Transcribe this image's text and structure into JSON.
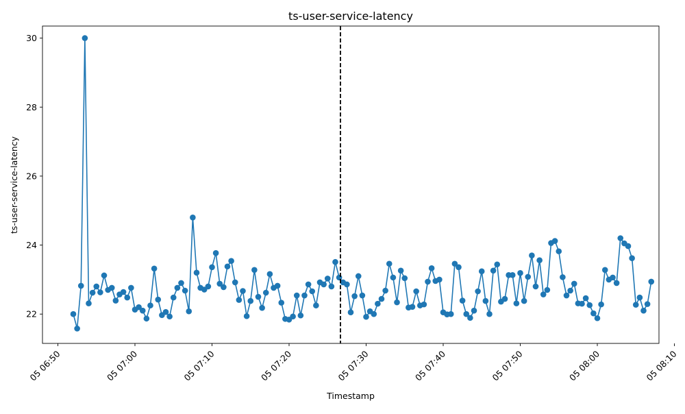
{
  "chart_data": {
    "type": "line",
    "title": "ts-user-service-latency",
    "xlabel": "Timestamp",
    "ylabel": "ts-user-service-latency",
    "x_axis_type": "datetime",
    "xlim": [
      "2021-05-05 06:48:00",
      "2021-05-05 08:08:00"
    ],
    "ylim": [
      21.15,
      30.35
    ],
    "x_ticks": [
      {
        "value": "2021-05-05 06:50:00",
        "label": "05 06:50"
      },
      {
        "value": "2021-05-05 07:00:00",
        "label": "05 07:00"
      },
      {
        "value": "2021-05-05 07:10:00",
        "label": "05 07:10"
      },
      {
        "value": "2021-05-05 07:20:00",
        "label": "05 07:20"
      },
      {
        "value": "2021-05-05 07:30:00",
        "label": "05 07:30"
      },
      {
        "value": "2021-05-05 07:40:00",
        "label": "05 07:40"
      },
      {
        "value": "2021-05-05 07:50:00",
        "label": "05 07:50"
      },
      {
        "value": "2021-05-05 08:00:00",
        "label": "05 08:00"
      },
      {
        "value": "2021-05-05 08:10:00",
        "label": "05 08:10"
      }
    ],
    "y_ticks": [
      22,
      24,
      26,
      28,
      30
    ],
    "grid": false,
    "marker": "circle",
    "color": "#1f77b4",
    "vline": {
      "x": "2021-05-05 07:26:40",
      "style": "dashed",
      "color": "#000000"
    },
    "series": [
      {
        "points": [
          [
            "2021-05-05 06:52:00",
            22.0
          ],
          [
            "2021-05-05 06:52:30",
            21.58
          ],
          [
            "2021-05-05 06:53:00",
            22.82
          ],
          [
            "2021-05-05 06:53:30",
            30.0
          ],
          [
            "2021-05-05 06:54:00",
            22.31
          ],
          [
            "2021-05-05 06:54:30",
            22.62
          ],
          [
            "2021-05-05 06:55:00",
            22.8
          ],
          [
            "2021-05-05 06:55:30",
            22.63
          ],
          [
            "2021-05-05 06:56:00",
            23.12
          ],
          [
            "2021-05-05 06:56:30",
            22.7
          ],
          [
            "2021-05-05 06:57:00",
            22.76
          ],
          [
            "2021-05-05 06:57:30",
            22.39
          ],
          [
            "2021-05-05 06:58:00",
            22.57
          ],
          [
            "2021-05-05 06:58:30",
            22.64
          ],
          [
            "2021-05-05 06:59:00",
            22.48
          ],
          [
            "2021-05-05 06:59:30",
            22.76
          ],
          [
            "2021-05-05 07:00:00",
            22.13
          ],
          [
            "2021-05-05 07:00:30",
            22.2
          ],
          [
            "2021-05-05 07:01:00",
            22.1
          ],
          [
            "2021-05-05 07:01:30",
            21.87
          ],
          [
            "2021-05-05 07:02:00",
            22.25
          ],
          [
            "2021-05-05 07:02:30",
            23.32
          ],
          [
            "2021-05-05 07:03:00",
            22.42
          ],
          [
            "2021-05-05 07:03:30",
            21.97
          ],
          [
            "2021-05-05 07:04:00",
            22.06
          ],
          [
            "2021-05-05 07:04:30",
            21.93
          ],
          [
            "2021-05-05 07:05:00",
            22.48
          ],
          [
            "2021-05-05 07:05:30",
            22.76
          ],
          [
            "2021-05-05 07:06:00",
            22.9
          ],
          [
            "2021-05-05 07:06:30",
            22.68
          ],
          [
            "2021-05-05 07:07:00",
            22.08
          ],
          [
            "2021-05-05 07:07:30",
            24.8
          ],
          [
            "2021-05-05 07:08:00",
            23.2
          ],
          [
            "2021-05-05 07:08:30",
            22.76
          ],
          [
            "2021-05-05 07:09:00",
            22.71
          ],
          [
            "2021-05-05 07:09:30",
            22.8
          ],
          [
            "2021-05-05 07:10:00",
            23.36
          ],
          [
            "2021-05-05 07:10:30",
            23.77
          ],
          [
            "2021-05-05 07:11:00",
            22.88
          ],
          [
            "2021-05-05 07:11:30",
            22.78
          ],
          [
            "2021-05-05 07:12:00",
            23.38
          ],
          [
            "2021-05-05 07:12:30",
            23.54
          ],
          [
            "2021-05-05 07:13:00",
            22.92
          ],
          [
            "2021-05-05 07:13:30",
            22.41
          ],
          [
            "2021-05-05 07:14:00",
            22.67
          ],
          [
            "2021-05-05 07:14:30",
            21.94
          ],
          [
            "2021-05-05 07:15:00",
            22.38
          ],
          [
            "2021-05-05 07:15:30",
            23.28
          ],
          [
            "2021-05-05 07:16:00",
            22.5
          ],
          [
            "2021-05-05 07:16:30",
            22.18
          ],
          [
            "2021-05-05 07:17:00",
            22.62
          ],
          [
            "2021-05-05 07:17:30",
            23.16
          ],
          [
            "2021-05-05 07:18:00",
            22.76
          ],
          [
            "2021-05-05 07:18:30",
            22.82
          ],
          [
            "2021-05-05 07:19:00",
            22.33
          ],
          [
            "2021-05-05 07:19:30",
            21.86
          ],
          [
            "2021-05-05 07:20:00",
            21.84
          ],
          [
            "2021-05-05 07:20:30",
            21.93
          ],
          [
            "2021-05-05 07:21:00",
            22.54
          ],
          [
            "2021-05-05 07:21:30",
            21.96
          ],
          [
            "2021-05-05 07:22:00",
            22.54
          ],
          [
            "2021-05-05 07:22:30",
            22.86
          ],
          [
            "2021-05-05 07:23:00",
            22.66
          ],
          [
            "2021-05-05 07:23:30",
            22.25
          ],
          [
            "2021-05-05 07:24:00",
            22.92
          ],
          [
            "2021-05-05 07:24:30",
            22.86
          ],
          [
            "2021-05-05 07:25:00",
            23.03
          ],
          [
            "2021-05-05 07:25:30",
            22.8
          ],
          [
            "2021-05-05 07:26:00",
            23.51
          ],
          [
            "2021-05-05 07:26:30",
            23.06
          ],
          [
            "2021-05-05 07:27:00",
            22.92
          ],
          [
            "2021-05-05 07:27:30",
            22.86
          ],
          [
            "2021-05-05 07:28:00",
            22.05
          ],
          [
            "2021-05-05 07:28:30",
            22.52
          ],
          [
            "2021-05-05 07:29:00",
            23.1
          ],
          [
            "2021-05-05 07:29:30",
            22.54
          ],
          [
            "2021-05-05 07:30:00",
            21.92
          ],
          [
            "2021-05-05 07:30:30",
            22.08
          ],
          [
            "2021-05-05 07:31:00",
            22.0
          ],
          [
            "2021-05-05 07:31:30",
            22.3
          ],
          [
            "2021-05-05 07:32:00",
            22.44
          ],
          [
            "2021-05-05 07:32:30",
            22.68
          ],
          [
            "2021-05-05 07:33:00",
            23.46
          ],
          [
            "2021-05-05 07:33:30",
            23.06
          ],
          [
            "2021-05-05 07:34:00",
            22.34
          ],
          [
            "2021-05-05 07:34:30",
            23.26
          ],
          [
            "2021-05-05 07:35:00",
            23.04
          ],
          [
            "2021-05-05 07:35:30",
            22.19
          ],
          [
            "2021-05-05 07:36:00",
            22.21
          ],
          [
            "2021-05-05 07:36:30",
            22.66
          ],
          [
            "2021-05-05 07:37:00",
            22.25
          ],
          [
            "2021-05-05 07:37:30",
            22.28
          ],
          [
            "2021-05-05 07:38:00",
            22.94
          ],
          [
            "2021-05-05 07:38:30",
            23.33
          ],
          [
            "2021-05-05 07:39:00",
            22.96
          ],
          [
            "2021-05-05 07:39:30",
            23.0
          ],
          [
            "2021-05-05 07:40:00",
            22.05
          ],
          [
            "2021-05-05 07:40:30",
            21.99
          ],
          [
            "2021-05-05 07:41:00",
            22.0
          ],
          [
            "2021-05-05 07:41:30",
            23.46
          ],
          [
            "2021-05-05 07:42:00",
            23.36
          ],
          [
            "2021-05-05 07:42:30",
            22.39
          ],
          [
            "2021-05-05 07:43:00",
            22.0
          ],
          [
            "2021-05-05 07:43:30",
            21.89
          ],
          [
            "2021-05-05 07:44:00",
            22.1
          ],
          [
            "2021-05-05 07:44:30",
            22.66
          ],
          [
            "2021-05-05 07:45:00",
            23.24
          ],
          [
            "2021-05-05 07:45:30",
            22.38
          ],
          [
            "2021-05-05 07:46:00",
            22.0
          ],
          [
            "2021-05-05 07:46:30",
            23.26
          ],
          [
            "2021-05-05 07:47:00",
            23.44
          ],
          [
            "2021-05-05 07:47:30",
            22.36
          ],
          [
            "2021-05-05 07:48:00",
            22.44
          ],
          [
            "2021-05-05 07:48:30",
            23.13
          ],
          [
            "2021-05-05 07:49:00",
            23.13
          ],
          [
            "2021-05-05 07:49:30",
            22.31
          ],
          [
            "2021-05-05 07:50:00",
            23.19
          ],
          [
            "2021-05-05 07:50:30",
            22.38
          ],
          [
            "2021-05-05 07:51:00",
            23.08
          ],
          [
            "2021-05-05 07:51:30",
            23.7
          ],
          [
            "2021-05-05 07:52:00",
            22.8
          ],
          [
            "2021-05-05 07:52:30",
            23.56
          ],
          [
            "2021-05-05 07:53:00",
            22.57
          ],
          [
            "2021-05-05 07:53:30",
            22.7
          ],
          [
            "2021-05-05 07:54:00",
            24.06
          ],
          [
            "2021-05-05 07:54:30",
            24.12
          ],
          [
            "2021-05-05 07:55:00",
            23.82
          ],
          [
            "2021-05-05 07:55:30",
            23.07
          ],
          [
            "2021-05-05 07:56:00",
            22.54
          ],
          [
            "2021-05-05 07:56:30",
            22.68
          ],
          [
            "2021-05-05 07:57:00",
            22.88
          ],
          [
            "2021-05-05 07:57:30",
            22.31
          ],
          [
            "2021-05-05 07:58:00",
            22.3
          ],
          [
            "2021-05-05 07:58:30",
            22.46
          ],
          [
            "2021-05-05 07:59:00",
            22.26
          ],
          [
            "2021-05-05 07:59:30",
            22.02
          ],
          [
            "2021-05-05 08:00:00",
            21.88
          ],
          [
            "2021-05-05 08:00:30",
            22.28
          ],
          [
            "2021-05-05 08:01:00",
            23.28
          ],
          [
            "2021-05-05 08:01:30",
            23.0
          ],
          [
            "2021-05-05 08:02:00",
            23.06
          ],
          [
            "2021-05-05 08:02:30",
            22.9
          ],
          [
            "2021-05-05 08:03:00",
            24.2
          ],
          [
            "2021-05-05 08:03:30",
            24.05
          ],
          [
            "2021-05-05 08:04:00",
            23.97
          ],
          [
            "2021-05-05 08:04:30",
            23.62
          ],
          [
            "2021-05-05 08:05:00",
            22.27
          ],
          [
            "2021-05-05 08:05:30",
            22.48
          ],
          [
            "2021-05-05 08:06:00",
            22.1
          ],
          [
            "2021-05-05 08:06:30",
            22.29
          ],
          [
            "2021-05-05 08:07:00",
            22.94
          ]
        ]
      }
    ]
  }
}
